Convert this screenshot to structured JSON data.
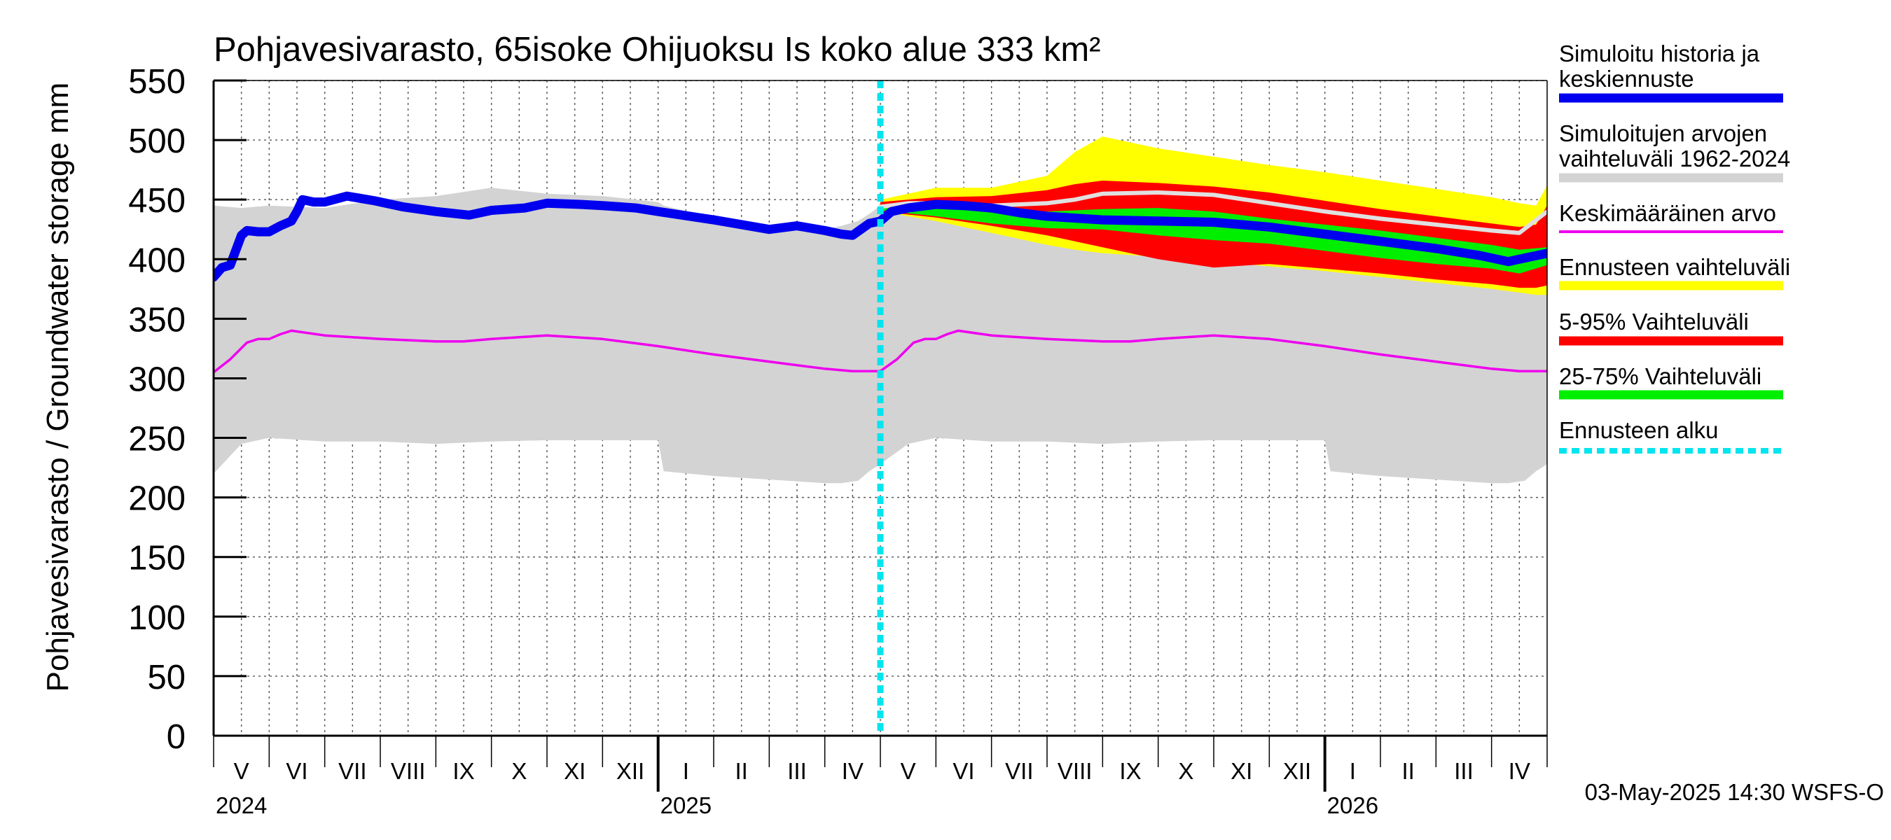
{
  "chart_data": {
    "type": "line",
    "title": "Pohjavesivarasto, 65isoke Ohijuoksu Is koko alue 333 km²",
    "ylabel": "Pohjavesivarasto / Groundwater storage   mm",
    "ylim": [
      0,
      550
    ],
    "yticks": [
      0,
      50,
      100,
      150,
      200,
      250,
      300,
      350,
      400,
      450,
      500,
      550
    ],
    "xlim": [
      0,
      24
    ],
    "month_labels": [
      "V",
      "VI",
      "VII",
      "VIII",
      "IX",
      "X",
      "XI",
      "XII",
      "I",
      "II",
      "III",
      "IV",
      "V",
      "VI",
      "VII",
      "VIII",
      "IX",
      "X",
      "XI",
      "XII",
      "I",
      "II",
      "III",
      "IV"
    ],
    "year_labels": [
      {
        "label": "2024",
        "x": 0
      },
      {
        "label": "2025",
        "x": 8
      },
      {
        "label": "2026",
        "x": 20
      }
    ],
    "forecast_start_x": 12.0,
    "footer": "03-May-2025 14:30 WSFS-O",
    "legend": [
      {
        "label": "Simuloitu historia ja keskiennuste",
        "color": "#0000ee",
        "style": "thick"
      },
      {
        "label": "Simuloitujen arvojen vaihteluväli 1962-2024",
        "color": "#d3d3d3",
        "style": "thick"
      },
      {
        "label": "Keskimääräinen arvo",
        "color": "#ee00ee",
        "style": "thin"
      },
      {
        "label": "Ennusteen vaihteluväli",
        "color": "#ffff00",
        "style": "thick"
      },
      {
        "label": "5-95% Vaihteluväli",
        "color": "#ff0000",
        "style": "thick"
      },
      {
        "label": "25-75% Vaihteluväli",
        "color": "#00ee00",
        "style": "thick"
      },
      {
        "label": "Ennusteen alku",
        "color": "#00e5ee",
        "style": "dashed"
      }
    ],
    "series": [
      {
        "name": "Simuloitu historia ja keskiennuste",
        "x": [
          0,
          0.15,
          0.3,
          0.5,
          0.6,
          0.8,
          1.0,
          1.2,
          1.4,
          1.5,
          1.6,
          1.8,
          2.0,
          2.4,
          2.9,
          3.4,
          4.0,
          4.6,
          5.0,
          5.6,
          6.0,
          6.6,
          7.0,
          7.6,
          8.0,
          9.0,
          10.0,
          10.5,
          11.0,
          11.3,
          11.5,
          11.8,
          12.0,
          12.2,
          12.5,
          13.0,
          13.5,
          14.0,
          14.5,
          15.0,
          16.0,
          17.0,
          18.0,
          19.0,
          20.0,
          21.0,
          22.0,
          22.8,
          23.3,
          23.7,
          24.0
        ],
        "values": [
          385,
          393,
          395,
          420,
          424,
          423,
          423,
          428,
          432,
          440,
          450,
          448,
          448,
          453,
          449,
          444,
          440,
          437,
          441,
          443,
          447,
          446,
          445,
          443,
          440,
          433,
          425,
          428,
          424,
          421,
          420,
          430,
          432,
          440,
          443,
          446,
          445,
          443,
          439,
          436,
          433,
          432,
          431,
          427,
          421,
          415,
          409,
          403,
          398,
          402,
          405
        ]
      },
      {
        "name": "Keskimääräinen arvo",
        "x": [
          0,
          0.3,
          0.6,
          0.8,
          1.0,
          1.2,
          1.4,
          2.0,
          3.0,
          4.0,
          4.5,
          5.0,
          6.0,
          7.0,
          8.0,
          9.0,
          10.0,
          11.0,
          11.5,
          12.0,
          12.3,
          12.6,
          12.8,
          13.0,
          13.2,
          13.4,
          14.0,
          15.0,
          16.0,
          16.5,
          17.0,
          18.0,
          19.0,
          20.0,
          21.0,
          22.0,
          23.0,
          23.5,
          24.0
        ],
        "values": [
          305,
          316,
          330,
          333,
          333,
          337,
          340,
          336,
          333,
          331,
          331,
          333,
          336,
          333,
          327,
          320,
          314,
          308,
          306,
          306,
          316,
          330,
          333,
          333,
          337,
          340,
          336,
          333,
          331,
          331,
          333,
          336,
          333,
          327,
          320,
          314,
          308,
          306,
          306
        ]
      },
      {
        "name": "Ennusteen mediaani",
        "x": [
          12.0,
          12.5,
          13.0,
          14.0,
          15.0,
          15.5,
          16.0,
          17.0,
          18.0,
          19.0,
          20.0,
          21.0,
          22.0,
          23.0,
          23.5,
          24.0
        ],
        "values": [
          444,
          447,
          447,
          445,
          447,
          450,
          455,
          456,
          454,
          447,
          440,
          434,
          429,
          424,
          422,
          440
        ]
      }
    ],
    "bands": [
      {
        "name": "Simuloitujen arvojen vaihteluväli 1962-2024",
        "x": [
          0,
          0.5,
          1.0,
          2.0,
          3.0,
          4.0,
          5.0,
          6.0,
          7.0,
          8.0,
          8.1,
          9.0,
          10.0,
          11.0,
          11.3,
          11.6,
          11.8,
          12.0,
          12.5,
          13.0,
          14.0,
          15.0,
          16.0,
          17.0,
          18.0,
          19.0,
          20.0,
          20.1,
          21.0,
          22.0,
          23.0,
          23.3,
          23.6,
          23.8,
          24.0
        ],
        "upper": [
          445,
          443,
          445,
          443,
          450,
          453,
          460,
          455,
          453,
          448,
          445,
          435,
          428,
          425,
          428,
          432,
          438,
          445,
          443,
          445,
          443,
          450,
          453,
          460,
          455,
          453,
          448,
          445,
          435,
          428,
          425,
          428,
          432,
          438,
          445
        ],
        "lower": [
          220,
          245,
          250,
          247,
          247,
          245,
          247,
          248,
          248,
          248,
          222,
          218,
          215,
          212,
          212,
          214,
          222,
          228,
          245,
          250,
          247,
          247,
          245,
          247,
          248,
          248,
          248,
          222,
          218,
          215,
          212,
          212,
          214,
          222,
          228
        ]
      },
      {
        "name": "Ennusteen vaihteluväli",
        "x": [
          12.0,
          13.0,
          14.0,
          15.0,
          15.5,
          16.0,
          17.0,
          18.0,
          19.0,
          20.0,
          21.0,
          22.0,
          23.0,
          23.5,
          23.8,
          24.0
        ],
        "upper": [
          450,
          460,
          460,
          470,
          490,
          503,
          493,
          486,
          479,
          473,
          466,
          459,
          452,
          447,
          445,
          462
        ],
        "lower": [
          440,
          432,
          422,
          412,
          408,
          405,
          402,
          398,
          394,
          390,
          385,
          380,
          375,
          372,
          370,
          370
        ]
      },
      {
        "name": "5-95% Vaihteluväli",
        "x": [
          12.0,
          13.0,
          14.0,
          15.0,
          15.5,
          16.0,
          17.0,
          18.0,
          19.0,
          20.0,
          21.0,
          22.0,
          23.0,
          23.5,
          23.8,
          24.0
        ],
        "upper": [
          448,
          452,
          453,
          458,
          463,
          466,
          464,
          461,
          456,
          449,
          442,
          436,
          430,
          427,
          429,
          445
        ],
        "lower": [
          440,
          435,
          428,
          420,
          415,
          410,
          400,
          393,
          396,
          392,
          388,
          383,
          379,
          376,
          376,
          378
        ]
      },
      {
        "name": "25-75% Vaihteluväli",
        "x": [
          12.0,
          13.0,
          14.0,
          15.0,
          16.0,
          17.0,
          18.0,
          19.0,
          20.0,
          21.0,
          22.0,
          23.0,
          23.5,
          24.0
        ],
        "upper": [
          445,
          444,
          440,
          440,
          442,
          443,
          440,
          434,
          429,
          424,
          418,
          412,
          408,
          410
        ],
        "lower": [
          441,
          436,
          430,
          426,
          425,
          420,
          416,
          413,
          407,
          401,
          396,
          392,
          388,
          395
        ]
      }
    ]
  }
}
